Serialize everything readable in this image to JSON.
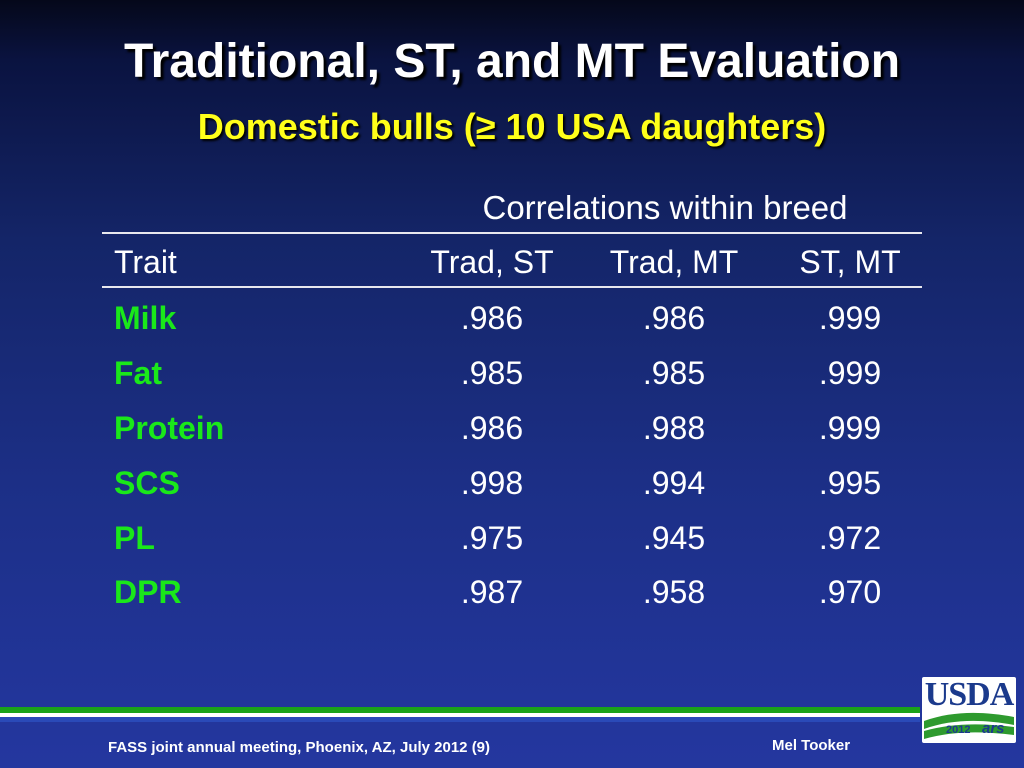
{
  "slide": {
    "title": "Traditional, ST, and MT Evaluation",
    "subtitle": "Domestic bulls (≥ 10 USA daughters)"
  },
  "table": {
    "group_header": "Correlations within breed",
    "columns": [
      "Trait",
      "Trad, ST",
      "Trad, MT",
      "ST, MT"
    ],
    "rows": [
      {
        "trait": "Milk",
        "values": [
          ".986",
          ".986",
          ".999"
        ]
      },
      {
        "trait": "Fat",
        "values": [
          ".985",
          ".985",
          ".999"
        ]
      },
      {
        "trait": "Protein",
        "values": [
          ".986",
          ".988",
          ".999"
        ]
      },
      {
        "trait": "SCS",
        "values": [
          ".998",
          ".994",
          ".995"
        ]
      },
      {
        "trait": "PL",
        "values": [
          ".975",
          ".945",
          ".972"
        ]
      },
      {
        "trait": "DPR",
        "values": [
          ".987",
          ".958",
          ".970"
        ]
      }
    ]
  },
  "footer": {
    "left": "FASS joint annual meeting, Phoenix, AZ, July 2012 (9)",
    "right": "Mel Tooker"
  },
  "logo": {
    "text": "USDA",
    "year": "2012",
    "mark": "ars"
  },
  "colors": {
    "title": "#ffffff",
    "subtitle": "#ffff1a",
    "trait_names": "#1ae81a",
    "background": "#1c2f86"
  }
}
